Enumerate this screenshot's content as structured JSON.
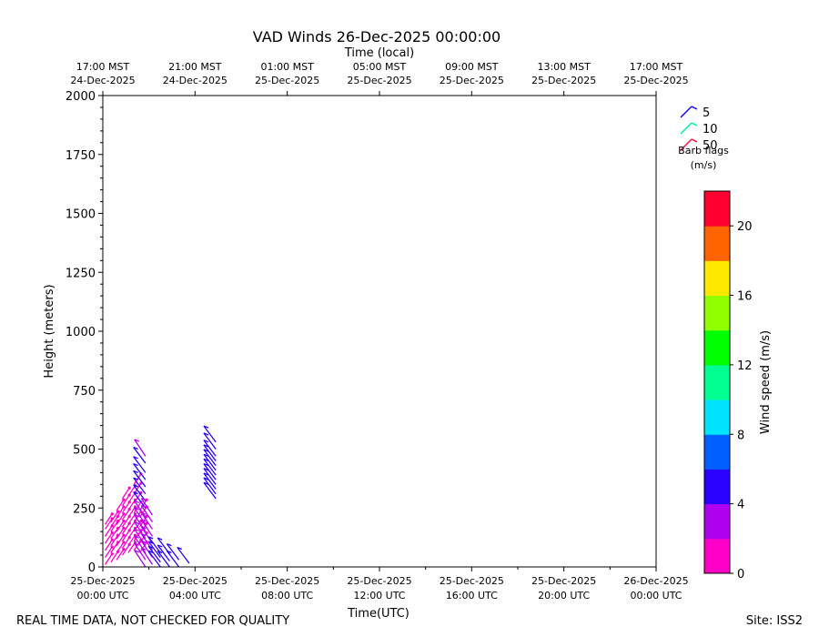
{
  "chart_data": {
    "type": "vad-wind-barbs",
    "title": "VAD Winds 26-Dec-2025 00:00:00",
    "top_axis_label": "Time (local)",
    "xlabel": "Time(UTC)",
    "ylabel": "Height (meters)",
    "x_range_hours_utc": [
      0,
      24
    ],
    "ylim": [
      0,
      2000
    ],
    "yticks": [
      0,
      250,
      500,
      750,
      1000,
      1250,
      1500,
      1750,
      2000
    ],
    "bottom_ticks": [
      {
        "hour": 0,
        "line1": "25-Dec-2025",
        "line2": "00:00 UTC"
      },
      {
        "hour": 4,
        "line1": "25-Dec-2025",
        "line2": "04:00 UTC"
      },
      {
        "hour": 8,
        "line1": "25-Dec-2025",
        "line2": "08:00 UTC"
      },
      {
        "hour": 12,
        "line1": "25-Dec-2025",
        "line2": "12:00 UTC"
      },
      {
        "hour": 16,
        "line1": "25-Dec-2025",
        "line2": "16:00 UTC"
      },
      {
        "hour": 20,
        "line1": "25-Dec-2025",
        "line2": "20:00 UTC"
      },
      {
        "hour": 24,
        "line1": "26-Dec-2025",
        "line2": "00:00 UTC"
      }
    ],
    "top_ticks": [
      {
        "hour": 0,
        "line1": "17:00 MST",
        "line2": "24-Dec-2025"
      },
      {
        "hour": 4,
        "line1": "21:00 MST",
        "line2": "24-Dec-2025"
      },
      {
        "hour": 8,
        "line1": "01:00 MST",
        "line2": "25-Dec-2025"
      },
      {
        "hour": 12,
        "line1": "05:00 MST",
        "line2": "25-Dec-2025"
      },
      {
        "hour": 16,
        "line1": "09:00 MST",
        "line2": "25-Dec-2025"
      },
      {
        "hour": 20,
        "line1": "13:00 MST",
        "line2": "25-Dec-2025"
      },
      {
        "hour": 24,
        "line1": "17:00 MST",
        "line2": "25-Dec-2025"
      }
    ],
    "legend": {
      "entries": [
        {
          "label": "5",
          "color": "#1a0de8"
        },
        {
          "label": "10",
          "color": "#00f0a0"
        },
        {
          "label": "50",
          "color": "#ff1040"
        }
      ],
      "title_line1": "Barb flags",
      "title_line2": "(m/s)",
      "placement": "top-right"
    },
    "colorbar": {
      "label": "Wind speed (m/s)",
      "range": [
        0,
        22
      ],
      "ticks": [
        0,
        4,
        8,
        12,
        16,
        20
      ],
      "colors": [
        "#ff00c8",
        "#b000f0",
        "#2a00ff",
        "#0060ff",
        "#00e4ff",
        "#00ff90",
        "#00ff00",
        "#90ff00",
        "#ffe800",
        "#ff6400",
        "#ff0030"
      ]
    },
    "series": [
      {
        "x": [
          0.1,
          0.1,
          0.1,
          0.1,
          0.1,
          0.1,
          0.1
        ],
        "y": [
          10,
          40,
          70,
          100,
          130,
          160,
          180
        ],
        "speed": [
          1.5,
          1.5,
          1.5,
          1.5,
          1.5,
          1.5,
          1.5
        ]
      },
      {
        "x": [
          0.35,
          0.35,
          0.35,
          0.35,
          0.35,
          0.35,
          0.35
        ],
        "y": [
          20,
          60,
          90,
          120,
          150,
          170,
          190
        ],
        "speed": [
          1.5,
          1.5,
          1.5,
          1.5,
          1.5,
          1.5,
          1.5
        ]
      },
      {
        "x": [
          0.6,
          0.6,
          0.6,
          0.6,
          0.6,
          0.6,
          0.6,
          0.6
        ],
        "y": [
          30,
          60,
          90,
          120,
          150,
          180,
          210,
          240
        ],
        "speed": [
          1.5,
          1.5,
          1.5,
          1.5,
          1.5,
          1.5,
          1.5,
          1.5
        ]
      },
      {
        "x": [
          0.85,
          0.85,
          0.85,
          0.85,
          0.85,
          0.85,
          0.85,
          0.85,
          0.85
        ],
        "y": [
          50,
          80,
          110,
          140,
          170,
          200,
          230,
          260,
          290
        ],
        "speed": [
          1.5,
          1.5,
          1.5,
          1.5,
          1.5,
          1.5,
          1.5,
          1.5,
          1.5
        ]
      },
      {
        "x": [
          1.1,
          1.1,
          1.1,
          1.1,
          1.1,
          1.1,
          1.1,
          1.1,
          1.1
        ],
        "y": [
          60,
          90,
          120,
          150,
          180,
          210,
          240,
          270,
          300
        ],
        "speed": [
          1.5,
          1.5,
          1.5,
          1.5,
          1.5,
          1.5,
          1.5,
          1.5,
          1.5
        ]
      },
      {
        "x": [
          1.35,
          1.35,
          1.35,
          1.35,
          1.35,
          1.35,
          1.35,
          1.35
        ],
        "y": [
          70,
          110,
          150,
          190,
          230,
          270,
          310,
          350
        ],
        "speed": [
          1.5,
          1.5,
          1.5,
          1.5,
          1.5,
          1.5,
          1.5,
          1.5
        ]
      },
      {
        "x": [
          1.6,
          1.6,
          1.6,
          1.6,
          1.6,
          1.6
        ],
        "y": [
          60,
          100,
          140,
          170,
          210,
          240
        ],
        "speed": [
          1.5,
          1.5,
          1.5,
          1.5,
          1.5,
          1.5
        ]
      },
      {
        "x": [
          1.85,
          1.85,
          1.85,
          1.85,
          1.85,
          1.85,
          1.85,
          1.85,
          1.85,
          1.85,
          1.85,
          1.85,
          1.85,
          1.85,
          1.85,
          1.85
        ],
        "y": [
          0,
          30,
          60,
          90,
          120,
          150,
          180,
          210,
          250,
          280,
          310,
          340,
          370,
          400,
          440,
          470
        ],
        "speed": [
          3,
          3,
          3,
          2.5,
          2.5,
          2.5,
          2.5,
          2.5,
          4,
          4,
          4.5,
          4.5,
          4.5,
          4.5,
          4.5,
          3.5
        ]
      },
      {
        "x": [
          2.15,
          2.15,
          2.15,
          2.15,
          2.15,
          2.15,
          2.15,
          2.15
        ],
        "y": [
          10,
          40,
          70,
          100,
          130,
          160,
          190,
          220
        ],
        "speed": [
          3.5,
          3.5,
          3.5,
          3,
          3,
          2.5,
          2.5,
          2.5
        ]
      },
      {
        "x": [
          2.5,
          2.5,
          2.5,
          2.5
        ],
        "y": [
          0,
          20,
          40,
          60
        ],
        "speed": [
          4.5,
          4.5,
          4.5,
          4.5
        ]
      },
      {
        "x": [
          2.9,
          2.9,
          2.9
        ],
        "y": [
          0,
          25,
          55
        ],
        "speed": [
          5,
          5,
          5
        ]
      },
      {
        "x": [
          3.3,
          3.3
        ],
        "y": [
          0,
          30
        ],
        "speed": [
          5,
          5
        ]
      },
      {
        "x": [
          3.75
        ],
        "y": [
          15
        ],
        "speed": [
          5
        ]
      },
      {
        "x": [
          4.9,
          4.9,
          4.9,
          4.9,
          4.9,
          4.9,
          4.9,
          4.9,
          4.9,
          4.9,
          4.9,
          4.9
        ],
        "y": [
          290,
          310,
          330,
          350,
          370,
          390,
          410,
          430,
          450,
          470,
          500,
          530
        ],
        "speed": [
          5,
          5,
          5,
          5,
          5,
          5,
          5,
          5,
          5,
          5,
          5,
          5
        ]
      }
    ]
  },
  "footer": {
    "left_note": "REAL TIME DATA, NOT CHECKED FOR QUALITY",
    "site": "Site: ISS2"
  }
}
